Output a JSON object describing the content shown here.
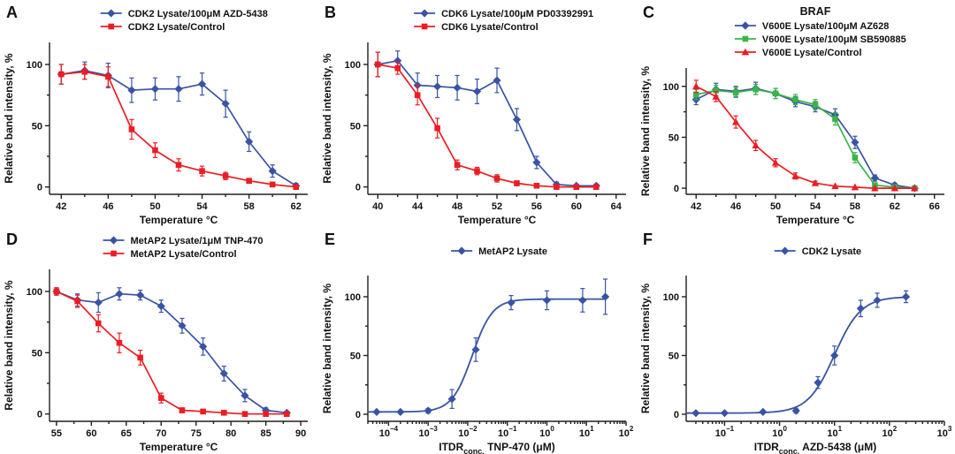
{
  "figure": {
    "description": "Six-panel thermal shift (CETSA) and ITDR dose-response figure",
    "background": "#ffffff"
  },
  "colors": {
    "blue": "#3953a4",
    "red": "#ed1c24",
    "green": "#39b54a",
    "axis": "#231f20"
  },
  "ylabel": "Relative band intensity, %",
  "chart_data": [
    {
      "label": "A",
      "type": "line",
      "title": "",
      "xlabel": "Temperature °C",
      "xscale": "linear",
      "xlim": [
        41,
        63
      ],
      "xticks": [
        42,
        46,
        50,
        54,
        58,
        62
      ],
      "ylim": [
        -6,
        118
      ],
      "yticks": [
        0,
        50,
        100
      ],
      "series": [
        {
          "name": "CDK2 Lysate/100μM AZD-5438",
          "color": "blue",
          "marker": "diamond",
          "x": [
            42,
            44,
            46,
            48,
            50,
            52,
            54,
            56,
            58,
            60,
            62
          ],
          "y": [
            92,
            95,
            91,
            79,
            80,
            80,
            84,
            68,
            37,
            13,
            1
          ],
          "err": [
            8,
            7,
            10,
            10,
            9,
            10,
            9,
            11,
            8,
            5,
            2
          ]
        },
        {
          "name": "CDK2 Lysate/Control",
          "color": "red",
          "marker": "square",
          "x": [
            42,
            44,
            46,
            48,
            50,
            52,
            54,
            56,
            58,
            60,
            62
          ],
          "y": [
            92,
            94,
            90,
            47,
            30,
            18,
            13,
            9,
            5,
            2,
            0
          ],
          "err": [
            8,
            6,
            8,
            8,
            6,
            5,
            4,
            3,
            2,
            1,
            0
          ]
        }
      ]
    },
    {
      "label": "B",
      "type": "line",
      "title": "",
      "xlabel": "Temperature °C",
      "xscale": "linear",
      "xlim": [
        39,
        65
      ],
      "xticks": [
        40,
        44,
        48,
        52,
        56,
        60,
        64
      ],
      "ylim": [
        -6,
        118
      ],
      "yticks": [
        0,
        50,
        100
      ],
      "series": [
        {
          "name": "CDK6 Lysate/100μM PD03392991",
          "color": "blue",
          "marker": "diamond",
          "x": [
            40,
            42,
            44,
            46,
            48,
            50,
            52,
            54,
            56,
            58,
            60,
            62
          ],
          "y": [
            100,
            103,
            83,
            82,
            81,
            78,
            87,
            55,
            20,
            2,
            1,
            1
          ],
          "err": [
            10,
            8,
            10,
            9,
            10,
            10,
            10,
            9,
            5,
            2,
            1,
            1
          ]
        },
        {
          "name": "CDK6 Lysate/Control",
          "color": "red",
          "marker": "square",
          "x": [
            40,
            42,
            44,
            46,
            48,
            50,
            52,
            54,
            56,
            58,
            60,
            62
          ],
          "y": [
            100,
            97,
            75,
            48,
            18,
            13,
            7,
            3,
            1,
            0,
            0,
            0
          ],
          "err": [
            10,
            5,
            8,
            8,
            4,
            3,
            3,
            2,
            1,
            0,
            0,
            0
          ]
        }
      ]
    },
    {
      "label": "C",
      "type": "line",
      "title": "BRAF",
      "xlabel": "Temperature °C",
      "xscale": "linear",
      "xlim": [
        41,
        67
      ],
      "xticks": [
        42,
        46,
        50,
        54,
        58,
        62,
        66
      ],
      "ylim": [
        -6,
        118
      ],
      "yticks": [
        0,
        50,
        100
      ],
      "series": [
        {
          "name": "V600E Lysate/100μM AZ628",
          "color": "blue",
          "marker": "diamond",
          "x": [
            42,
            44,
            46,
            48,
            50,
            52,
            54,
            56,
            58,
            60,
            62,
            64
          ],
          "y": [
            87,
            97,
            95,
            98,
            93,
            85,
            80,
            72,
            45,
            10,
            3,
            0
          ],
          "err": [
            5,
            6,
            5,
            6,
            5,
            5,
            5,
            6,
            6,
            3,
            2,
            1
          ]
        },
        {
          "name": "V600E Lysate/100μM SB590885",
          "color": "green",
          "marker": "square",
          "x": [
            42,
            44,
            46,
            48,
            50,
            52,
            54,
            56,
            58,
            60,
            62,
            64
          ],
          "y": [
            92,
            96,
            94,
            97,
            93,
            87,
            82,
            68,
            30,
            3,
            1,
            0
          ],
          "err": [
            5,
            5,
            5,
            5,
            5,
            5,
            5,
            6,
            5,
            2,
            1,
            0
          ]
        },
        {
          "name": "V600E Lysate/Control",
          "color": "red",
          "marker": "triangle",
          "x": [
            42,
            44,
            46,
            48,
            50,
            52,
            54,
            56,
            58,
            60,
            62,
            64
          ],
          "y": [
            100,
            90,
            65,
            42,
            25,
            12,
            5,
            2,
            1,
            0,
            0,
            0
          ],
          "err": [
            6,
            5,
            6,
            5,
            4,
            3,
            2,
            1,
            0,
            0,
            0,
            0
          ]
        }
      ]
    },
    {
      "label": "D",
      "type": "line",
      "title": "",
      "xlabel": "Temperature °C",
      "xscale": "linear",
      "xlim": [
        54,
        91
      ],
      "xticks": [
        55,
        60,
        65,
        70,
        75,
        80,
        85,
        90
      ],
      "ylim": [
        -6,
        118
      ],
      "yticks": [
        0,
        50,
        100
      ],
      "series": [
        {
          "name": "MetAP2 Lysate/1μM TNP-470",
          "color": "blue",
          "marker": "diamond",
          "x": [
            55,
            58,
            61,
            64,
            67,
            70,
            73,
            76,
            79,
            82,
            85,
            88
          ],
          "y": [
            100,
            93,
            91,
            98,
            97,
            88,
            72,
            55,
            33,
            15,
            3,
            1
          ],
          "err": [
            3,
            5,
            8,
            5,
            4,
            5,
            6,
            7,
            6,
            5,
            2,
            1
          ]
        },
        {
          "name": "MetAP2 Lysate/Control",
          "color": "red",
          "marker": "square",
          "x": [
            55,
            58,
            61,
            64,
            67,
            70,
            73,
            76,
            79,
            82,
            85,
            88
          ],
          "y": [
            100,
            92,
            74,
            58,
            46,
            13,
            3,
            2,
            1,
            0,
            0,
            0
          ],
          "err": [
            3,
            5,
            7,
            8,
            6,
            4,
            2,
            1,
            0,
            0,
            0,
            0
          ]
        }
      ]
    },
    {
      "label": "E",
      "type": "line",
      "title": "",
      "xlabel": "ITDRconc. TNP-470 (μM)",
      "xlabel_parts": [
        {
          "t": "ITDR"
        },
        {
          "t": "conc.",
          "sub": true
        },
        {
          "t": " TNP-470 (μM)"
        }
      ],
      "xscale": "log",
      "xlim": [
        3e-05,
        100
      ],
      "xticks": [
        0.0001,
        0.001,
        0.01,
        0.1,
        1,
        10,
        100
      ],
      "ylim": [
        -6,
        118
      ],
      "yticks": [
        0,
        50,
        100
      ],
      "series": [
        {
          "name": "MetAP2 Lysate",
          "color": "blue",
          "marker": "diamond",
          "x": [
            5e-05,
            0.0002,
            0.001,
            0.004,
            0.016,
            0.125,
            1,
            8,
            30
          ],
          "y": [
            2,
            2,
            3,
            13,
            55,
            95,
            97,
            97,
            100
          ],
          "err": [
            1,
            1,
            2,
            8,
            10,
            6,
            8,
            10,
            15
          ],
          "fit": {
            "bottom": 2,
            "top": 98,
            "ec50": 0.013,
            "hill": 1.7
          }
        }
      ]
    },
    {
      "label": "F",
      "type": "line",
      "title": "",
      "xlabel": "ITDRconc. AZD-5438 (μM)",
      "xlabel_parts": [
        {
          "t": "ITDR"
        },
        {
          "t": "conc.",
          "sub": true
        },
        {
          "t": " AZD-5438 (μM)"
        }
      ],
      "xscale": "log",
      "xlim": [
        0.02,
        1000
      ],
      "xticks": [
        0.1,
        1,
        10,
        100,
        1000
      ],
      "ylim": [
        -6,
        118
      ],
      "yticks": [
        0,
        50,
        100
      ],
      "series": [
        {
          "name": "CDK2 Lysate",
          "color": "blue",
          "marker": "diamond",
          "x": [
            0.03,
            0.1,
            0.5,
            2,
            5,
            10,
            30,
            60,
            200
          ],
          "y": [
            1,
            1,
            2,
            3,
            27,
            50,
            90,
            97,
            100
          ],
          "err": [
            1,
            1,
            1,
            2,
            5,
            8,
            7,
            6,
            5
          ],
          "fit": {
            "bottom": 1,
            "top": 100,
            "ec50": 10,
            "hill": 1.8
          }
        }
      ]
    }
  ]
}
